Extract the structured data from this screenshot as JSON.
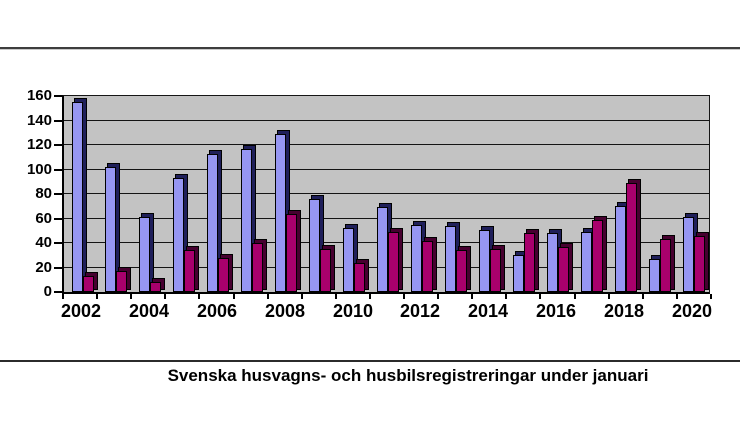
{
  "page": {
    "background": "#ffffff"
  },
  "chart_data": {
    "type": "bar",
    "title": "Svenska husvagns- och husbilsregistreringar under januari",
    "categories": [
      "2002",
      "2003",
      "2004",
      "2005",
      "2006",
      "2007",
      "2008",
      "2009",
      "2010",
      "2011",
      "2012",
      "2013",
      "2014",
      "2015",
      "2016",
      "2017",
      "2018",
      "2019",
      "2020"
    ],
    "x_axis_tick_labels": [
      "2002",
      "2004",
      "2006",
      "2008",
      "2010",
      "2012",
      "2014",
      "2016",
      "2018",
      "2020"
    ],
    "y_tick_labels": [
      "0",
      "20",
      "40",
      "60",
      "80",
      "100",
      "120",
      "140",
      "160"
    ],
    "ylim": [
      0,
      160
    ],
    "ytick_step": 20,
    "grid": true,
    "legend": "none",
    "plot_background": "#c3c3c3",
    "gridline_color": "#141414",
    "series": [
      {
        "name": "husvagnsregistreringar",
        "face_color": "#9696f2",
        "edge_color": "#1f1f5a",
        "values": [
          155,
          102,
          61,
          93,
          113,
          117,
          129,
          76,
          52,
          69,
          55,
          54,
          51,
          30,
          48,
          49,
          70,
          27,
          61
        ]
      },
      {
        "name": "husbilsregistreringar",
        "face_color": "#a8006c",
        "edge_color": "#46002f",
        "values": [
          13,
          17,
          8,
          34,
          28,
          40,
          64,
          35,
          24,
          49,
          42,
          34,
          35,
          48,
          37,
          59,
          89,
          43,
          46
        ]
      }
    ]
  }
}
